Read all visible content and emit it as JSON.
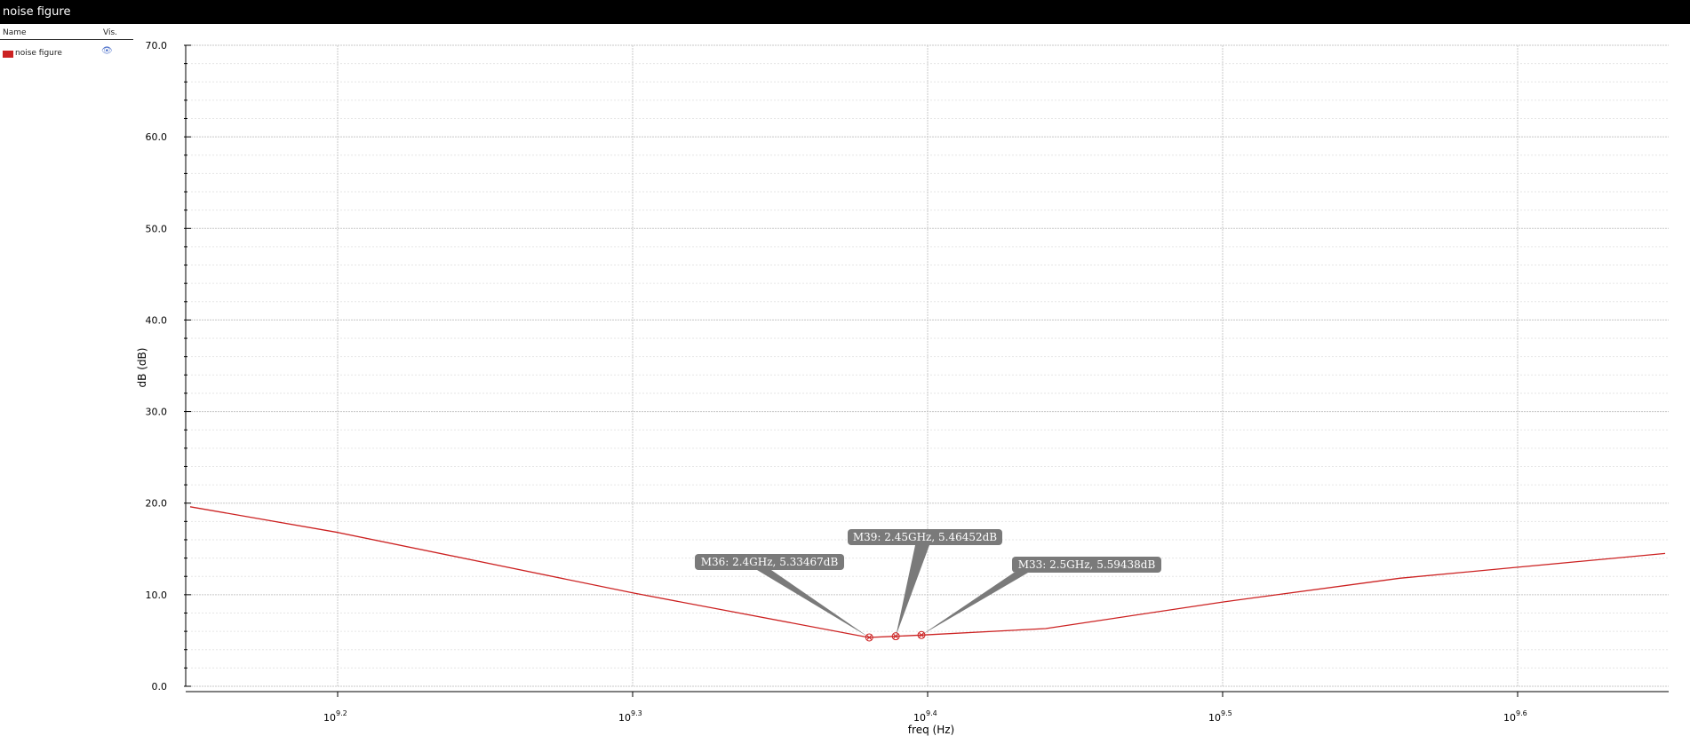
{
  "window": {
    "title": "noise figure"
  },
  "legend": {
    "header_name": "Name",
    "header_vis": "Vis.",
    "entries": [
      {
        "label": "noise figure",
        "color": "#cc2222"
      }
    ]
  },
  "chart_data": {
    "type": "line",
    "title": "",
    "xlabel": "freq (Hz)",
    "ylabel": "dB (dB)",
    "xscale": "log",
    "xlim_log10": [
      9.15,
      9.65
    ],
    "ylim": [
      0,
      70
    ],
    "x_ticks": [
      {
        "exp": 9.2,
        "base": "10",
        "sup": "9.2"
      },
      {
        "exp": 9.3,
        "base": "10",
        "sup": "9.3"
      },
      {
        "exp": 9.4,
        "base": "10",
        "sup": "9.4"
      },
      {
        "exp": 9.5,
        "base": "10",
        "sup": "9.5"
      },
      {
        "exp": 9.6,
        "base": "10",
        "sup": "9.6"
      }
    ],
    "y_ticks": [
      "0.0",
      "10.0",
      "20.0",
      "30.0",
      "40.0",
      "50.0",
      "60.0",
      "70.0"
    ],
    "grid": true,
    "series": [
      {
        "name": "noise figure",
        "color": "#cc2222",
        "points_log10f": [
          [
            9.15,
            19.6
          ],
          [
            9.2,
            16.8
          ],
          [
            9.3,
            10.2
          ],
          [
            9.38,
            5.33
          ],
          [
            9.389,
            5.46
          ],
          [
            9.398,
            5.59
          ],
          [
            9.44,
            6.3
          ],
          [
            9.5,
            9.2
          ],
          [
            9.56,
            11.8
          ],
          [
            9.6,
            13.0
          ],
          [
            9.65,
            14.5
          ]
        ]
      }
    ],
    "markers": [
      {
        "label": "M36: 2.4GHz, 5.33467dB",
        "log10f": 9.3802,
        "y": 5.33467,
        "anchor": "upper-left"
      },
      {
        "label": "M39: 2.45GHz, 5.46452dB",
        "log10f": 9.3892,
        "y": 5.46452,
        "anchor": "top"
      },
      {
        "label": "M33: 2.5GHz, 5.59438dB",
        "log10f": 9.3979,
        "y": 5.59438,
        "anchor": "upper-right"
      }
    ]
  }
}
